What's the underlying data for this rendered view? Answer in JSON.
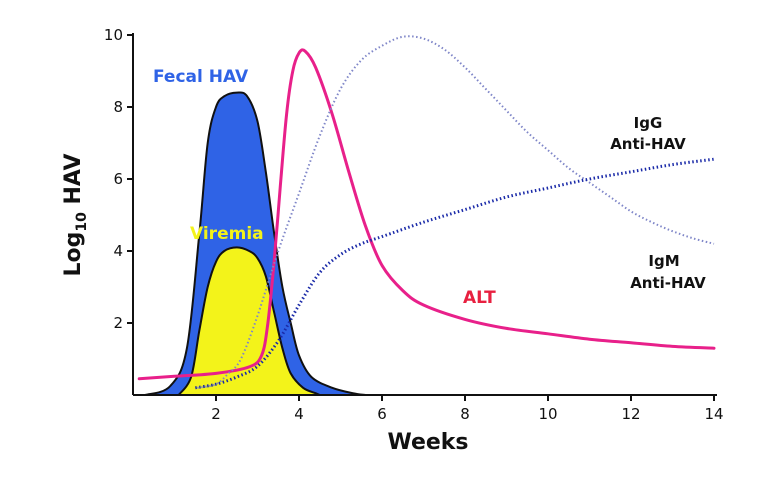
{
  "chart_data": {
    "type": "area",
    "title": "",
    "xlabel": "Weeks",
    "ylabel_main": "Log",
    "ylabel_sub": "10",
    "ylabel_tail": " HAV",
    "xlim": [
      0,
      14
    ],
    "ylim": [
      0,
      10
    ],
    "xticks": [
      2,
      4,
      6,
      8,
      10,
      12,
      14
    ],
    "yticks": [
      2,
      4,
      6,
      8,
      10
    ],
    "series": [
      {
        "name": "Fecal HAV",
        "kind": "area",
        "color": "#2f63e6",
        "label_color": "#2f63e6",
        "points": [
          [
            0.3,
            0
          ],
          [
            0.9,
            0.25
          ],
          [
            1.3,
            1.3
          ],
          [
            1.6,
            4.5
          ],
          [
            1.8,
            7
          ],
          [
            2.0,
            8.0
          ],
          [
            2.2,
            8.3
          ],
          [
            2.5,
            8.4
          ],
          [
            2.75,
            8.3
          ],
          [
            3.0,
            7.6
          ],
          [
            3.2,
            6.2
          ],
          [
            3.4,
            4.5
          ],
          [
            3.6,
            3.0
          ],
          [
            3.8,
            2.0
          ],
          [
            4.0,
            1.1
          ],
          [
            4.3,
            0.5
          ],
          [
            4.8,
            0.2
          ],
          [
            5.3,
            0.05
          ],
          [
            5.6,
            0
          ]
        ]
      },
      {
        "name": "Viremia",
        "kind": "area",
        "color": "#f3f31a",
        "label_color": "#f3f31a",
        "points": [
          [
            1.1,
            0
          ],
          [
            1.4,
            0.5
          ],
          [
            1.6,
            1.8
          ],
          [
            1.8,
            3.0
          ],
          [
            2.0,
            3.7
          ],
          [
            2.2,
            4.0
          ],
          [
            2.5,
            4.1
          ],
          [
            2.8,
            4.0
          ],
          [
            3.0,
            3.8
          ],
          [
            3.2,
            3.3
          ],
          [
            3.4,
            2.3
          ],
          [
            3.6,
            1.3
          ],
          [
            3.8,
            0.6
          ],
          [
            4.1,
            0.2
          ],
          [
            4.4,
            0.05
          ],
          [
            4.5,
            0
          ]
        ]
      },
      {
        "name": "ALT",
        "kind": "line",
        "color": "#e8208a",
        "label_color": "#e82040",
        "points": [
          [
            0.15,
            0.45
          ],
          [
            1.0,
            0.52
          ],
          [
            2.0,
            0.6
          ],
          [
            2.8,
            0.78
          ],
          [
            3.1,
            1.1
          ],
          [
            3.25,
            2.0
          ],
          [
            3.4,
            3.7
          ],
          [
            3.55,
            5.8
          ],
          [
            3.7,
            7.8
          ],
          [
            3.85,
            9.0
          ],
          [
            4.0,
            9.5
          ],
          [
            4.15,
            9.55
          ],
          [
            4.4,
            9.1
          ],
          [
            4.8,
            7.8
          ],
          [
            5.2,
            6.2
          ],
          [
            5.6,
            4.7
          ],
          [
            6.0,
            3.6
          ],
          [
            6.5,
            2.9
          ],
          [
            7.0,
            2.5
          ],
          [
            8.0,
            2.1
          ],
          [
            9.0,
            1.85
          ],
          [
            10.0,
            1.7
          ],
          [
            11.0,
            1.55
          ],
          [
            12.0,
            1.45
          ],
          [
            13.0,
            1.35
          ],
          [
            14.0,
            1.3
          ]
        ]
      },
      {
        "name": "IgM Anti-HAV",
        "kind": "dotted-line",
        "color": "#7f86c8",
        "label_line1": "IgM",
        "label_line2": "Anti-HAV",
        "points": [
          [
            1.55,
            0.2
          ],
          [
            2.0,
            0.3
          ],
          [
            2.3,
            0.6
          ],
          [
            2.6,
            1.0
          ],
          [
            3.0,
            2.2
          ],
          [
            3.5,
            4.0
          ],
          [
            4.0,
            5.6
          ],
          [
            4.5,
            7.2
          ],
          [
            5.0,
            8.5
          ],
          [
            5.5,
            9.3
          ],
          [
            6.0,
            9.7
          ],
          [
            6.5,
            9.95
          ],
          [
            7.0,
            9.9
          ],
          [
            7.5,
            9.6
          ],
          [
            8.0,
            9.1
          ],
          [
            8.5,
            8.5
          ],
          [
            9.0,
            7.9
          ],
          [
            9.5,
            7.3
          ],
          [
            10.0,
            6.8
          ],
          [
            10.5,
            6.3
          ],
          [
            11.0,
            5.9
          ],
          [
            11.5,
            5.5
          ],
          [
            12.0,
            5.1
          ],
          [
            12.5,
            4.8
          ],
          [
            13.0,
            4.55
          ],
          [
            13.5,
            4.35
          ],
          [
            14.0,
            4.2
          ]
        ]
      },
      {
        "name": "IgG Anti-HAV",
        "kind": "dotted-line",
        "color": "#1a2aa8",
        "label_line1": "IgG",
        "label_line2": "Anti-HAV",
        "points": [
          [
            1.5,
            0.2
          ],
          [
            2.0,
            0.3
          ],
          [
            2.5,
            0.5
          ],
          [
            3.0,
            0.8
          ],
          [
            3.5,
            1.5
          ],
          [
            4.0,
            2.5
          ],
          [
            4.5,
            3.4
          ],
          [
            5.0,
            3.9
          ],
          [
            5.5,
            4.2
          ],
          [
            6.0,
            4.4
          ],
          [
            7.0,
            4.8
          ],
          [
            8.0,
            5.15
          ],
          [
            9.0,
            5.5
          ],
          [
            10.0,
            5.75
          ],
          [
            11.0,
            6.0
          ],
          [
            12.0,
            6.2
          ],
          [
            13.0,
            6.4
          ],
          [
            14.0,
            6.55
          ]
        ]
      }
    ]
  }
}
